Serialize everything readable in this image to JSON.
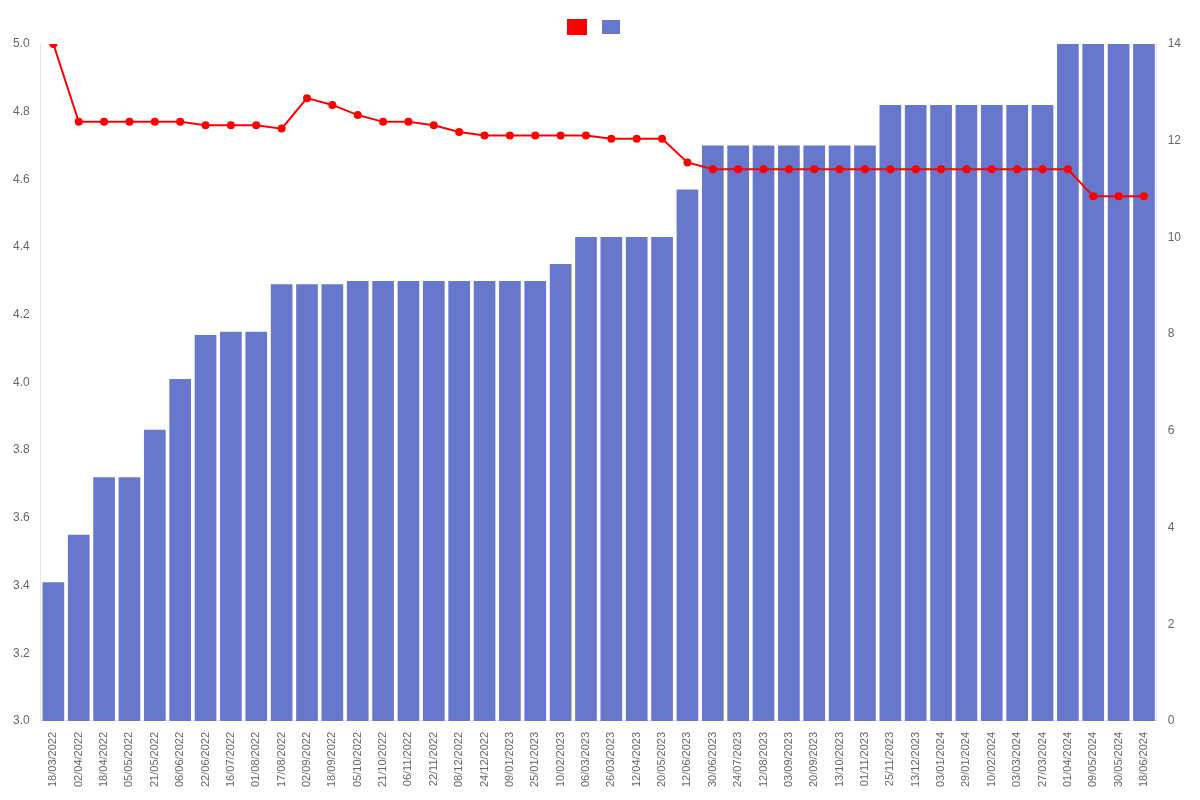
{
  "chart_data": {
    "type": "bar",
    "categories": [
      "18/03/2022",
      "02/04/2022",
      "18/04/2022",
      "05/05/2022",
      "21/05/2022",
      "06/06/2022",
      "22/06/2022",
      "16/07/2022",
      "01/08/2022",
      "17/08/2022",
      "02/09/2022",
      "18/09/2022",
      "05/10/2022",
      "21/10/2022",
      "06/11/2022",
      "22/11/2022",
      "08/12/2022",
      "24/12/2022",
      "09/01/2023",
      "25/01/2023",
      "10/02/2023",
      "06/03/2023",
      "26/03/2023",
      "12/04/2023",
      "20/05/2023",
      "12/06/2023",
      "30/06/2023",
      "24/07/2023",
      "12/08/2023",
      "03/09/2023",
      "20/09/2023",
      "13/10/2023",
      "01/11/2023",
      "25/11/2023",
      "13/12/2023",
      "03/01/2024",
      "29/01/2024",
      "10/02/2024",
      "03/03/2024",
      "27/03/2024",
      "01/04/2024",
      "09/05/2024",
      "30/05/2024",
      "18/06/2024"
    ],
    "series": [
      {
        "type": "bar",
        "color": "#6677cc",
        "values": [
          3.41,
          3.55,
          3.72,
          3.72,
          3.86,
          4.01,
          4.14,
          4.15,
          4.15,
          4.29,
          4.29,
          4.29,
          4.3,
          4.3,
          4.3,
          4.3,
          4.3,
          4.3,
          4.3,
          4.3,
          4.35,
          4.43,
          4.43,
          4.43,
          4.43,
          4.57,
          4.7,
          4.7,
          4.7,
          4.7,
          4.7,
          4.7,
          4.7,
          4.82,
          4.82,
          4.82,
          4.82,
          4.82,
          4.82,
          4.82,
          5.0,
          5.0,
          5.0,
          5.0
        ]
      },
      {
        "type": "line",
        "color": "#ff0000",
        "marker": "circle",
        "values": [
          5.0,
          4.77,
          4.77,
          4.77,
          4.77,
          4.77,
          4.76,
          4.76,
          4.76,
          4.75,
          4.84,
          4.82,
          4.79,
          4.77,
          4.77,
          4.76,
          4.74,
          4.73,
          4.73,
          4.73,
          4.73,
          4.73,
          4.72,
          4.72,
          4.72,
          4.65,
          4.63,
          4.63,
          4.63,
          4.63,
          4.63,
          4.63,
          4.63,
          4.63,
          4.63,
          4.63,
          4.63,
          4.63,
          4.63,
          4.63,
          4.63,
          4.55,
          4.55,
          4.55
        ]
      }
    ],
    "ylim": [
      3.0,
      5.0
    ],
    "yticks": [
      {
        "value": 3.0,
        "label": "3.0"
      },
      3.2,
      3.4,
      3.6,
      3.8,
      {
        "value": 4.0,
        "label": "4.0"
      },
      4.2,
      4.4,
      4.6,
      4.8,
      {
        "value": 5.0,
        "label": "5.0"
      }
    ],
    "y2lim": [
      0,
      14
    ],
    "y2ticks": [
      0,
      2,
      4,
      6,
      8,
      10,
      12,
      14
    ],
    "grid": false,
    "legend": "top"
  }
}
